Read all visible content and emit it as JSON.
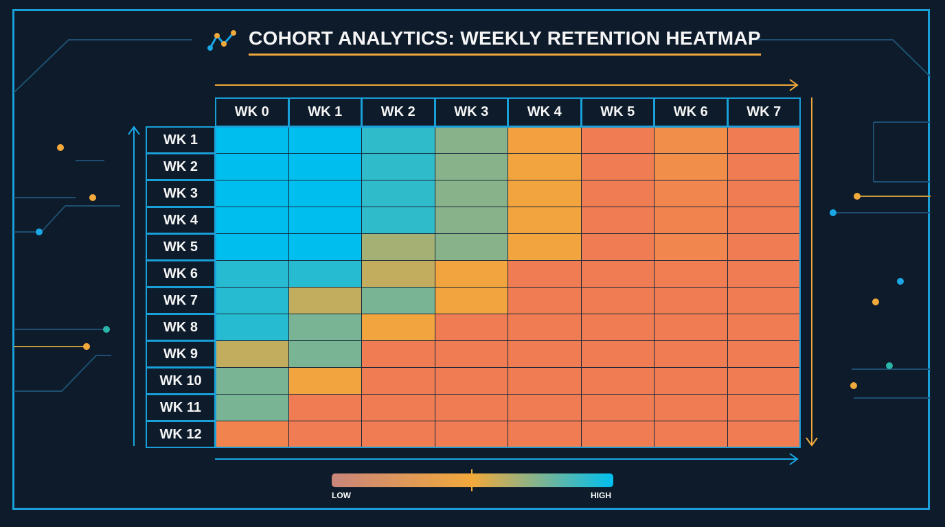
{
  "title": "COHORT ANALYTICS: WEEKLY RETENTION HEATMAP",
  "colors": {
    "frame": "#1a9fd9",
    "accent": "#f2a93b",
    "background": "#0d1b2a",
    "low": "#f07358",
    "mid": "#f2a93b",
    "high": "#00bfef"
  },
  "legend": {
    "low_label": "LOW",
    "high_label": "HIGH"
  },
  "icons": {
    "title_icon": "line-chart-icon"
  },
  "chart_data": {
    "type": "heatmap",
    "title": "COHORT ANALYTICS: WEEKLY RETENTION HEATMAP",
    "columns": [
      "WK 0",
      "WK 1",
      "WK 2",
      "WK 3",
      "WK 4",
      "WK 5",
      "WK 6",
      "WK 7"
    ],
    "rows": [
      "WK 1",
      "WK 2",
      "WK 3",
      "WK 4",
      "WK 5",
      "WK 6",
      "WK 7",
      "WK 8",
      "WK 9",
      "WK 10",
      "WK 11",
      "WK 12"
    ],
    "scale": {
      "min_label": "LOW",
      "max_label": "HIGH",
      "range": [
        0,
        1
      ]
    },
    "values": [
      [
        1.0,
        1.0,
        0.9,
        0.72,
        0.42,
        0.08,
        0.25,
        0.08
      ],
      [
        1.0,
        1.0,
        0.9,
        0.72,
        0.45,
        0.08,
        0.25,
        0.08
      ],
      [
        1.0,
        1.0,
        0.9,
        0.72,
        0.45,
        0.08,
        0.18,
        0.08
      ],
      [
        1.0,
        1.0,
        0.9,
        0.72,
        0.45,
        0.08,
        0.15,
        0.08
      ],
      [
        1.0,
        1.0,
        0.66,
        0.72,
        0.45,
        0.08,
        0.18,
        0.08
      ],
      [
        0.92,
        0.92,
        0.6,
        0.45,
        0.08,
        0.08,
        0.1,
        0.08
      ],
      [
        0.92,
        0.6,
        0.75,
        0.45,
        0.08,
        0.08,
        0.08,
        0.08
      ],
      [
        0.92,
        0.75,
        0.45,
        0.08,
        0.08,
        0.08,
        0.08,
        0.08
      ],
      [
        0.6,
        0.75,
        0.08,
        0.08,
        0.08,
        0.08,
        0.08,
        0.08
      ],
      [
        0.75,
        0.45,
        0.08,
        0.08,
        0.08,
        0.08,
        0.08,
        0.08
      ],
      [
        0.75,
        0.08,
        0.08,
        0.08,
        0.08,
        0.08,
        0.08,
        0.08
      ],
      [
        0.15,
        0.08,
        0.08,
        0.08,
        0.08,
        0.08,
        0.08,
        0.08
      ]
    ]
  }
}
